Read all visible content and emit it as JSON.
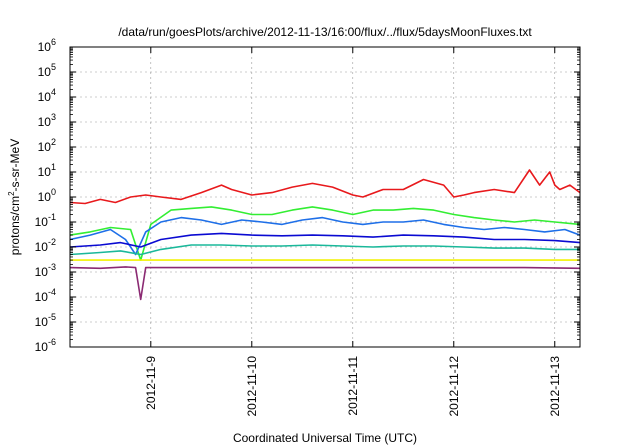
{
  "chart_data": {
    "type": "line",
    "title": "/data/run/goesPlots/archive/2012-11-13/16:00/flux/../flux/5daysMoonFluxes.txt",
    "xlabel": "Coordinated Universal Time (UTC)",
    "ylabel": {
      "prefix": "protons/cm",
      "sup": "2",
      "suffix": "-s-sr-MeV"
    },
    "yscale": "log",
    "ylim": [
      1e-06,
      1000000.0
    ],
    "xlim": [
      0,
      5.05
    ],
    "y_ticks": [
      {
        "value": 1000000.0,
        "base": "10",
        "exp": "6"
      },
      {
        "value": 100000.0,
        "base": "10",
        "exp": "5"
      },
      {
        "value": 10000.0,
        "base": "10",
        "exp": "4"
      },
      {
        "value": 1000.0,
        "base": "10",
        "exp": "3"
      },
      {
        "value": 100.0,
        "base": "10",
        "exp": "2"
      },
      {
        "value": 10.0,
        "base": "10",
        "exp": "1"
      },
      {
        "value": 1,
        "base": "10",
        "exp": "0"
      },
      {
        "value": 0.1,
        "base": "10",
        "exp": "-1"
      },
      {
        "value": 0.01,
        "base": "10",
        "exp": "-2"
      },
      {
        "value": 0.001,
        "base": "10",
        "exp": "-3"
      },
      {
        "value": 0.0001,
        "base": "10",
        "exp": "-4"
      },
      {
        "value": 1e-05,
        "base": "10",
        "exp": "-5"
      },
      {
        "value": 1e-06,
        "base": "10",
        "exp": "-6"
      }
    ],
    "x_ticks": [
      {
        "value": 0.8,
        "label": "2012-11-9"
      },
      {
        "value": 1.8,
        "label": "2012-11-10"
      },
      {
        "value": 2.8,
        "label": "2012-11-11"
      },
      {
        "value": 3.8,
        "label": "2012-11-12"
      },
      {
        "value": 4.8,
        "label": "2012-11-13"
      }
    ],
    "grid": true,
    "series": [
      {
        "color": "#e8191c",
        "x": [
          0,
          0.15,
          0.3,
          0.45,
          0.6,
          0.75,
          0.9,
          1.1,
          1.3,
          1.5,
          1.6,
          1.8,
          2.0,
          2.2,
          2.4,
          2.6,
          2.8,
          2.9,
          3.1,
          3.3,
          3.5,
          3.7,
          3.8,
          3.9,
          4.0,
          4.2,
          4.4,
          4.55,
          4.65,
          4.75,
          4.8,
          4.85,
          4.95,
          5.05
        ],
        "y": [
          0.6,
          0.55,
          0.8,
          0.6,
          1.0,
          1.2,
          1.0,
          0.8,
          1.5,
          3.0,
          2.0,
          1.2,
          1.5,
          2.5,
          3.5,
          2.5,
          1.2,
          1.0,
          2.0,
          2.0,
          5.0,
          3.0,
          1.0,
          1.2,
          1.5,
          2.0,
          1.5,
          12.0,
          3.0,
          10.0,
          3.0,
          2.0,
          3.0,
          1.5
        ]
      },
      {
        "color": "#33ee33",
        "x": [
          0,
          0.2,
          0.4,
          0.6,
          0.7,
          0.8,
          1.0,
          1.2,
          1.4,
          1.6,
          1.8,
          2.0,
          2.2,
          2.4,
          2.6,
          2.8,
          3.0,
          3.2,
          3.4,
          3.6,
          3.8,
          4.0,
          4.2,
          4.4,
          4.6,
          4.8,
          5.05
        ],
        "y": [
          0.03,
          0.04,
          0.06,
          0.05,
          0.003,
          0.08,
          0.3,
          0.35,
          0.4,
          0.3,
          0.2,
          0.2,
          0.3,
          0.4,
          0.3,
          0.2,
          0.3,
          0.3,
          0.35,
          0.3,
          0.2,
          0.15,
          0.12,
          0.1,
          0.12,
          0.1,
          0.08
        ]
      },
      {
        "color": "#1e6fe8",
        "x": [
          0,
          0.2,
          0.4,
          0.55,
          0.65,
          0.75,
          0.9,
          1.1,
          1.3,
          1.5,
          1.7,
          1.9,
          2.1,
          2.3,
          2.5,
          2.7,
          2.9,
          3.1,
          3.3,
          3.5,
          3.7,
          3.9,
          4.1,
          4.3,
          4.5,
          4.7,
          4.9,
          5.05
        ],
        "y": [
          0.02,
          0.03,
          0.05,
          0.02,
          0.005,
          0.04,
          0.1,
          0.15,
          0.12,
          0.08,
          0.12,
          0.1,
          0.08,
          0.12,
          0.15,
          0.1,
          0.08,
          0.1,
          0.1,
          0.12,
          0.08,
          0.06,
          0.05,
          0.06,
          0.05,
          0.04,
          0.05,
          0.03
        ]
      },
      {
        "color": "#0a0ad2",
        "x": [
          0,
          0.3,
          0.5,
          0.7,
          0.9,
          1.2,
          1.5,
          1.8,
          2.1,
          2.4,
          2.7,
          3.0,
          3.3,
          3.6,
          3.9,
          4.2,
          4.5,
          4.8,
          5.05
        ],
        "y": [
          0.01,
          0.012,
          0.015,
          0.01,
          0.02,
          0.03,
          0.035,
          0.03,
          0.028,
          0.03,
          0.028,
          0.025,
          0.03,
          0.028,
          0.025,
          0.02,
          0.02,
          0.018,
          0.015
        ]
      },
      {
        "color": "#1ab89a",
        "x": [
          0,
          0.3,
          0.5,
          0.7,
          0.9,
          1.2,
          1.5,
          1.8,
          2.1,
          2.4,
          2.7,
          3.0,
          3.3,
          3.6,
          3.9,
          4.2,
          4.5,
          4.8,
          5.05
        ],
        "y": [
          0.005,
          0.006,
          0.007,
          0.005,
          0.008,
          0.012,
          0.012,
          0.011,
          0.011,
          0.012,
          0.011,
          0.01,
          0.011,
          0.011,
          0.01,
          0.009,
          0.009,
          0.008,
          0.008
        ]
      },
      {
        "color": "#f2f200",
        "x": [
          0,
          0.5,
          1.0,
          1.5,
          2.0,
          2.5,
          3.0,
          3.5,
          4.0,
          4.5,
          5.05
        ],
        "y": [
          0.003,
          0.003,
          0.003,
          0.003,
          0.003,
          0.003,
          0.003,
          0.003,
          0.003,
          0.003,
          0.003
        ]
      },
      {
        "color": "#8b2a73",
        "x": [
          0,
          0.3,
          0.55,
          0.65,
          0.7,
          0.75,
          0.8,
          1.0,
          1.5,
          2.0,
          2.5,
          3.0,
          3.5,
          4.0,
          4.5,
          5.05
        ],
        "y": [
          0.0015,
          0.0014,
          0.0016,
          0.0015,
          8e-05,
          0.0015,
          0.0015,
          0.0015,
          0.0015,
          0.0015,
          0.0015,
          0.0015,
          0.0015,
          0.0015,
          0.0015,
          0.0014
        ]
      }
    ]
  }
}
